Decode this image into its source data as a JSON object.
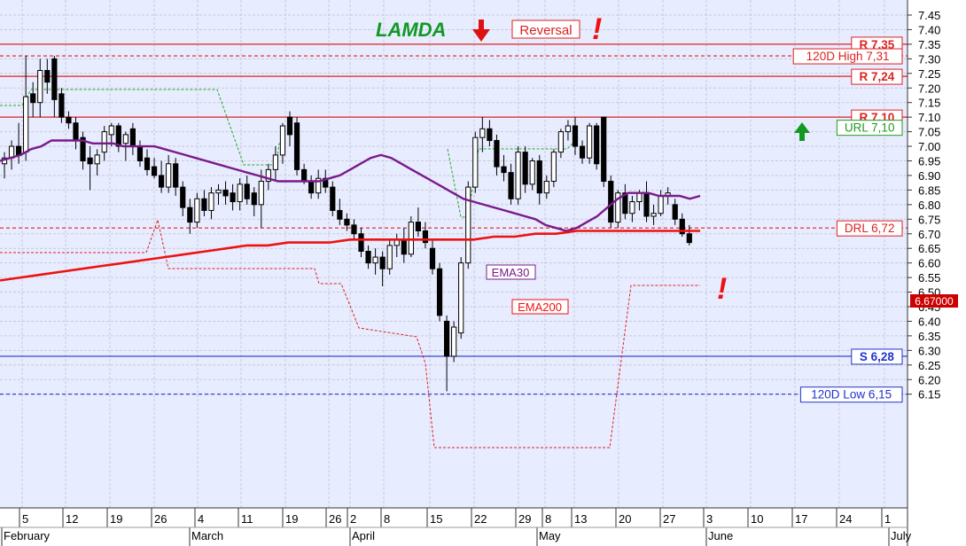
{
  "chart_data": {
    "type": "candlestick",
    "title": "LAMDA",
    "annotation_reversal": "Reversal",
    "annotation_mark": "!",
    "ylim": [
      6.13,
      7.47
    ],
    "y_ticks": [
      "7.45",
      "7.40",
      "7.35",
      "7.30",
      "7.25",
      "7.20",
      "7.15",
      "7.10",
      "7.05",
      "7.00",
      "6.95",
      "6.90",
      "6.85",
      "6.80",
      "6.75",
      "6.70",
      "6.65",
      "6.60",
      "6.55",
      "6.50",
      "6.45",
      "6.40",
      "6.35",
      "6.30",
      "6.25",
      "6.20",
      "6.15"
    ],
    "x_ticks": [
      "5",
      "12",
      "19",
      "26",
      "4",
      "11",
      "19",
      "26",
      "2",
      "8",
      "15",
      "22",
      "29",
      "8",
      "13",
      "20",
      "27",
      "3",
      "10",
      "17",
      "24",
      "1"
    ],
    "months": [
      "February",
      "March",
      "April",
      "May",
      "June",
      "July"
    ],
    "price_label": "6.67000",
    "levels": [
      {
        "name": "R 7,35",
        "value": 7.35,
        "style": "solid",
        "color": "#dd2222"
      },
      {
        "name": "120D High 7,31",
        "value": 7.31,
        "style": "dashed",
        "color": "#dd2222"
      },
      {
        "name": "R 7,24",
        "value": 7.24,
        "style": "solid",
        "color": "#dd2222"
      },
      {
        "name": "R 7,10",
        "value": 7.1,
        "style": "solid",
        "color": "#dd2222"
      },
      {
        "name": "URL 7,10",
        "value": 7.065,
        "style": "none",
        "color": "#229922"
      },
      {
        "name": "DRL 6,72",
        "value": 6.72,
        "style": "dashed",
        "color": "#dd2222"
      },
      {
        "name": "S 6,28",
        "value": 6.28,
        "style": "solid",
        "color": "#2233cc"
      },
      {
        "name": "120D Low 6,15",
        "value": 6.15,
        "style": "dashed",
        "color": "#2233cc"
      }
    ],
    "series_labels": {
      "ema30": "EMA30",
      "ema200": "EMA200"
    },
    "candles": [
      [
        6.94,
        6.98,
        6.89,
        6.96
      ],
      [
        6.96,
        7.02,
        6.92,
        7.0
      ],
      [
        7.0,
        7.08,
        6.94,
        6.97
      ],
      [
        6.98,
        7.31,
        6.95,
        7.17
      ],
      [
        7.18,
        7.22,
        7.1,
        7.15
      ],
      [
        7.15,
        7.3,
        7.1,
        7.26
      ],
      [
        7.26,
        7.3,
        7.18,
        7.22
      ],
      [
        7.3,
        7.31,
        7.1,
        7.16
      ],
      [
        7.18,
        7.2,
        7.08,
        7.1
      ],
      [
        7.1,
        7.12,
        7.06,
        7.08
      ],
      [
        7.08,
        7.1,
        6.99,
        7.02
      ],
      [
        7.03,
        7.05,
        6.92,
        6.95
      ],
      [
        6.96,
        7.0,
        6.85,
        6.94
      ],
      [
        6.94,
        6.99,
        6.9,
        6.97
      ],
      [
        6.98,
        7.07,
        6.95,
        7.05
      ],
      [
        7.04,
        7.08,
        7.0,
        7.07
      ],
      [
        7.07,
        7.08,
        6.98,
        7.0
      ],
      [
        7.01,
        7.05,
        6.95,
        7.04
      ],
      [
        7.06,
        7.08,
        6.97,
        7.0
      ],
      [
        7.0,
        7.02,
        6.93,
        6.95
      ],
      [
        6.96,
        6.99,
        6.9,
        6.92
      ],
      [
        6.93,
        6.96,
        6.89,
        6.9
      ],
      [
        6.9,
        6.95,
        6.84,
        6.86
      ],
      [
        6.86,
        6.97,
        6.84,
        6.94
      ],
      [
        6.94,
        6.96,
        6.83,
        6.86
      ],
      [
        6.86,
        6.88,
        6.76,
        6.79
      ],
      [
        6.79,
        6.82,
        6.7,
        6.74
      ],
      [
        6.74,
        6.84,
        6.72,
        6.82
      ],
      [
        6.82,
        6.85,
        6.76,
        6.78
      ],
      [
        6.78,
        6.86,
        6.75,
        6.84
      ],
      [
        6.84,
        6.87,
        6.8,
        6.85
      ],
      [
        6.85,
        6.88,
        6.8,
        6.83
      ],
      [
        6.84,
        6.87,
        6.78,
        6.81
      ],
      [
        6.81,
        6.89,
        6.78,
        6.87
      ],
      [
        6.87,
        6.9,
        6.8,
        6.82
      ],
      [
        6.84,
        6.86,
        6.76,
        6.8
      ],
      [
        6.8,
        6.92,
        6.72,
        6.88
      ],
      [
        6.88,
        6.94,
        6.85,
        6.92
      ],
      [
        6.92,
        7.0,
        6.88,
        6.97
      ],
      [
        6.97,
        7.08,
        6.94,
        7.07
      ],
      [
        7.1,
        7.12,
        7.0,
        7.04
      ],
      [
        7.08,
        7.1,
        6.9,
        6.92
      ],
      [
        6.92,
        6.94,
        6.87,
        6.88
      ],
      [
        6.88,
        6.9,
        6.82,
        6.84
      ],
      [
        6.84,
        6.92,
        6.82,
        6.89
      ],
      [
        6.89,
        6.92,
        6.84,
        6.86
      ],
      [
        6.86,
        6.88,
        6.76,
        6.78
      ],
      [
        6.78,
        6.82,
        6.73,
        6.75
      ],
      [
        6.75,
        6.77,
        6.71,
        6.73
      ],
      [
        6.73,
        6.75,
        6.68,
        6.7
      ],
      [
        6.7,
        6.72,
        6.62,
        6.64
      ],
      [
        6.64,
        6.66,
        6.58,
        6.6
      ],
      [
        6.6,
        6.65,
        6.56,
        6.62
      ],
      [
        6.62,
        6.64,
        6.52,
        6.58
      ],
      [
        6.58,
        6.68,
        6.56,
        6.66
      ],
      [
        6.66,
        6.7,
        6.62,
        6.68
      ],
      [
        6.68,
        6.72,
        6.6,
        6.63
      ],
      [
        6.63,
        6.76,
        6.62,
        6.74
      ],
      [
        6.74,
        6.79,
        6.69,
        6.71
      ],
      [
        6.71,
        6.74,
        6.65,
        6.67
      ],
      [
        6.65,
        6.68,
        6.56,
        6.58
      ],
      [
        6.58,
        6.6,
        6.4,
        6.42
      ],
      [
        6.4,
        6.42,
        6.16,
        6.28
      ],
      [
        6.28,
        6.4,
        6.26,
        6.38
      ],
      [
        6.36,
        6.62,
        6.34,
        6.6
      ],
      [
        6.6,
        6.88,
        6.58,
        6.86
      ],
      [
        6.86,
        7.05,
        6.84,
        7.03
      ],
      [
        7.03,
        7.1,
        6.98,
        7.06
      ],
      [
        7.06,
        7.09,
        7.0,
        7.02
      ],
      [
        7.02,
        7.04,
        6.9,
        6.93
      ],
      [
        6.93,
        6.97,
        6.88,
        6.91
      ],
      [
        6.91,
        6.94,
        6.8,
        6.82
      ],
      [
        6.82,
        7.0,
        6.8,
        6.98
      ],
      [
        6.98,
        7.0,
        6.84,
        6.87
      ],
      [
        6.87,
        6.96,
        6.85,
        6.95
      ],
      [
        6.95,
        6.97,
        6.8,
        6.84
      ],
      [
        6.84,
        6.9,
        6.82,
        6.88
      ],
      [
        6.88,
        6.99,
        6.86,
        6.98
      ],
      [
        6.98,
        7.06,
        6.96,
        7.05
      ],
      [
        7.05,
        7.09,
        7.02,
        7.07
      ],
      [
        7.07,
        7.1,
        6.97,
        7.0
      ],
      [
        7.0,
        7.02,
        6.94,
        6.96
      ],
      [
        6.96,
        7.08,
        6.94,
        7.07
      ],
      [
        7.07,
        7.08,
        6.92,
        6.94
      ],
      [
        7.1,
        7.1,
        6.86,
        6.88
      ],
      [
        6.88,
        6.9,
        6.72,
        6.74
      ],
      [
        6.74,
        6.85,
        6.72,
        6.84
      ],
      [
        6.84,
        6.87,
        6.75,
        6.77
      ],
      [
        6.77,
        6.83,
        6.74,
        6.81
      ],
      [
        6.81,
        6.85,
        6.78,
        6.84
      ],
      [
        6.84,
        6.88,
        6.74,
        6.76
      ],
      [
        6.76,
        6.8,
        6.73,
        6.77
      ],
      [
        6.77,
        6.85,
        6.76,
        6.83
      ],
      [
        6.83,
        6.86,
        6.8,
        6.84
      ],
      [
        6.8,
        6.82,
        6.73,
        6.75
      ],
      [
        6.75,
        6.77,
        6.69,
        6.7
      ],
      [
        6.7,
        6.73,
        6.66,
        6.67
      ]
    ],
    "ema30": [
      6.95,
      6.96,
      6.97,
      6.99,
      7.0,
      7.02,
      7.02,
      7.02,
      7.02,
      7.01,
      7.01,
      7.01,
      7.0,
      7.0,
      7.0,
      7.0,
      6.99,
      6.98,
      6.97,
      6.96,
      6.95,
      6.94,
      6.93,
      6.92,
      6.91,
      6.9,
      6.89,
      6.88,
      6.88,
      6.88,
      6.88,
      6.88,
      6.89,
      6.9,
      6.92,
      6.94,
      6.96,
      6.97,
      6.96,
      6.94,
      6.92,
      6.9,
      6.88,
      6.86,
      6.84,
      6.82,
      6.81,
      6.8,
      6.79,
      6.78,
      6.77,
      6.76,
      6.75,
      6.73,
      6.72,
      6.71,
      6.72,
      6.74,
      6.76,
      6.79,
      6.82,
      6.84,
      6.84,
      6.84,
      6.83,
      6.83,
      6.83,
      6.82,
      6.83
    ],
    "ema200": [
      6.54,
      6.55,
      6.56,
      6.57,
      6.58,
      6.59,
      6.6,
      6.61,
      6.62,
      6.63,
      6.64,
      6.65,
      6.66,
      6.66,
      6.67,
      6.67,
      6.67,
      6.68,
      6.68,
      6.68,
      6.68,
      6.68,
      6.68,
      6.68,
      6.69,
      6.69,
      6.7,
      6.7,
      6.71,
      6.71,
      6.71,
      6.71,
      6.71,
      6.71,
      6.71
    ]
  }
}
